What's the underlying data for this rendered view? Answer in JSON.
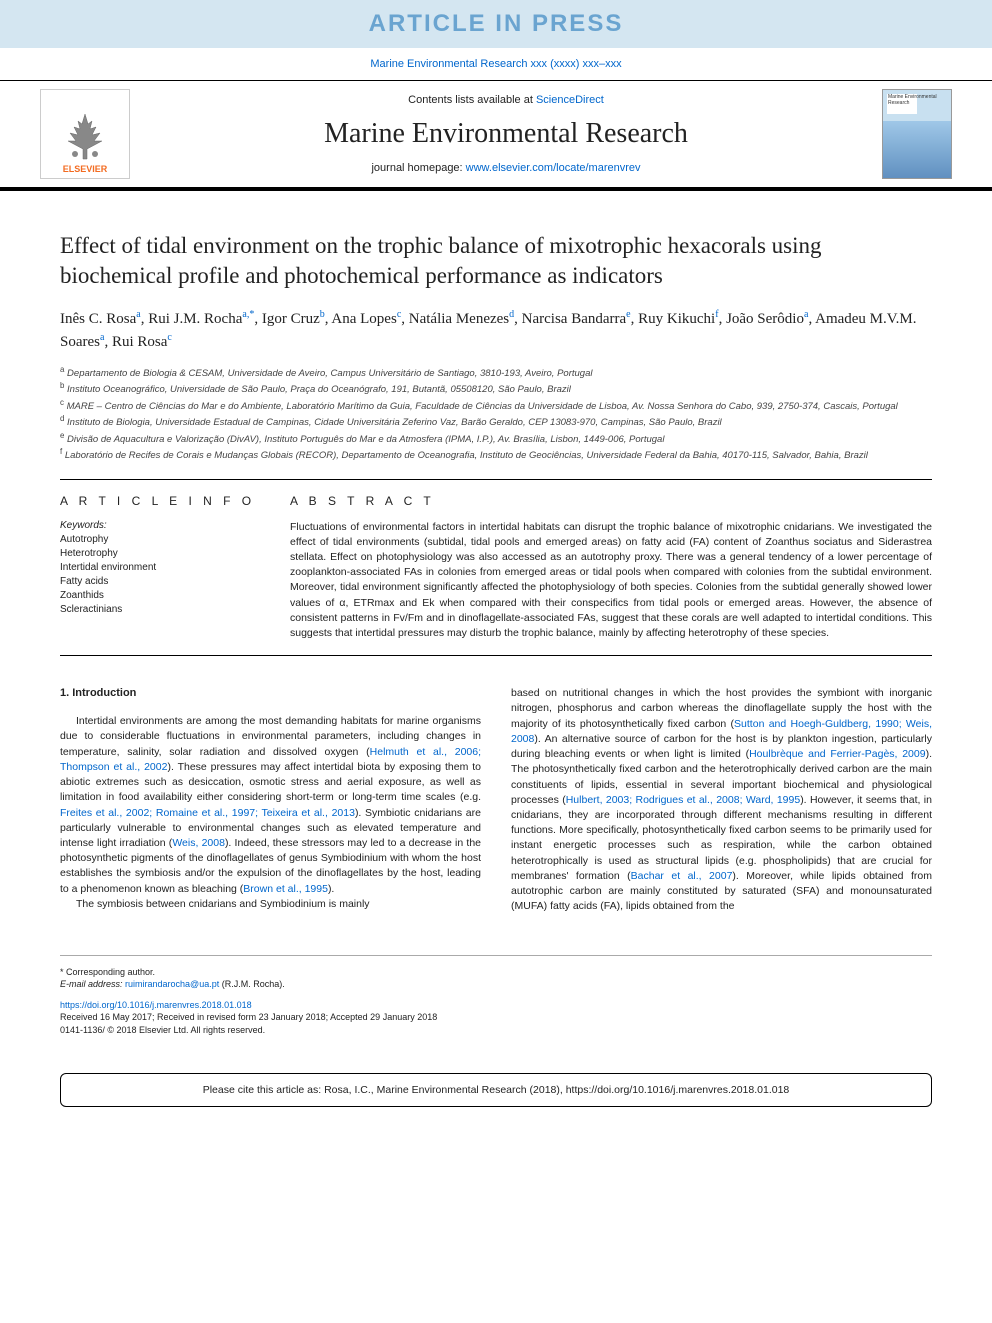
{
  "banner": "ARTICLE IN PRESS",
  "journal_ref_pre": "Marine Environmental Research xxx (xxxx) xxx–xxx",
  "header": {
    "contents_pre": "Contents lists available at ",
    "contents_link": "ScienceDirect",
    "journal_title": "Marine Environmental Research",
    "homepage_pre": "journal homepage: ",
    "homepage_link": "www.elsevier.com/locate/marenvrev",
    "elsevier_label": "ELSEVIER",
    "cover_label": "Marine\nEnvironmental\nResearch"
  },
  "article": {
    "title": "Effect of tidal environment on the trophic balance of mixotrophic hexacorals using biochemical profile and photochemical performance as indicators",
    "authors_html": "Inês C. Rosa<sup>a</sup>, Rui J.M. Rocha<sup>a,*</sup>, Igor Cruz<sup>b</sup>, Ana Lopes<sup>c</sup>, Natália Menezes<sup>d</sup>, Narcisa Bandarra<sup>e</sup>, Ruy Kikuchi<sup>f</sup>, João Serôdio<sup>a</sup>, Amadeu M.V.M. Soares<sup>a</sup>, Rui Rosa<sup>c</sup>",
    "affiliations": [
      "a Departamento de Biologia & CESAM, Universidade de Aveiro, Campus Universitário de Santiago, 3810-193, Aveiro, Portugal",
      "b Instituto Oceanográfico, Universidade de São Paulo, Praça do Oceanógrafo, 191, Butantã, 05508120, São Paulo, Brazil",
      "c MARE – Centro de Ciências do Mar e do Ambiente, Laboratório Marítimo da Guia, Faculdade de Ciências da Universidade de Lisboa, Av. Nossa Senhora do Cabo, 939, 2750-374, Cascais, Portugal",
      "d Instituto de Biologia, Universidade Estadual de Campinas, Cidade Universitária Zeferino Vaz, Barão Geraldo, CEP 13083-970, Campinas, São Paulo, Brazil",
      "e Divisão de Aquacultura e Valorização (DivAV), Instituto Português do Mar e da Atmosfera (IPMA, I.P.), Av. Brasília, Lisbon, 1449-006, Portugal",
      "f Laboratório de Recifes de Corais e Mudanças Globais (RECOR), Departamento de Oceanografia, Instituto de Geociências, Universidade Federal da Bahia, 40170-115, Salvador, Bahia, Brazil"
    ],
    "info_label": "A R T I C L E  I N F O",
    "keywords_label": "Keywords:",
    "keywords": [
      "Autotrophy",
      "Heterotrophy",
      "Intertidal environment",
      "Fatty acids",
      "Zoanthids",
      "Scleractinians"
    ],
    "abstract_label": "A B S T R A C T",
    "abstract": "Fluctuations of environmental factors in intertidal habitats can disrupt the trophic balance of mixotrophic cnidarians. We investigated the effect of tidal environments (subtidal, tidal pools and emerged areas) on fatty acid (FA) content of Zoanthus sociatus and Siderastrea stellata. Effect on photophysiology was also accessed as an autotrophy proxy. There was a general tendency of a lower percentage of zooplankton-associated FAs in colonies from emerged areas or tidal pools when compared with colonies from the subtidal environment. Moreover, tidal environment significantly affected the photophysiology of both species. Colonies from the subtidal generally showed lower values of α, ETRmax and Ek when compared with their conspecifics from tidal pools or emerged areas. However, the absence of consistent patterns in Fv/Fm and in dinoflagellate-associated FAs, suggest that these corals are well adapted to intertidal conditions. This suggests that intertidal pressures may disturb the trophic balance, mainly by affecting heterotrophy of these species."
  },
  "body": {
    "heading": "1. Introduction",
    "col1_p1": "Intertidal environments are among the most demanding habitats for marine organisms due to considerable fluctuations in environmental parameters, including changes in temperature, salinity, solar radiation and dissolved oxygen (",
    "col1_l1": "Helmuth et al., 2006; Thompson et al., 2002",
    "col1_p2": "). These pressures may affect intertidal biota by exposing them to abiotic extremes such as desiccation, osmotic stress and aerial exposure, as well as limitation in food availability either considering short-term or long-term time scales (e.g. ",
    "col1_l2": "Freites et al., 2002; Romaine et al., 1997; Teixeira et al., 2013",
    "col1_p3": "). Symbiotic cnidarians are particularly vulnerable to environmental changes such as elevated temperature and intense light irradiation (",
    "col1_l3": "Weis, 2008",
    "col1_p4": "). Indeed, these stressors may led to a decrease in the photosynthetic pigments of the dinoflagellates of genus Symbiodinium with whom the host establishes the symbiosis and/or the expulsion of the dinoflagellates by the host, leading to a phenomenon known as bleaching (",
    "col1_l4": "Brown et al., 1995",
    "col1_p5": ").",
    "col1_p6": "The symbiosis between cnidarians and Symbiodinium is mainly",
    "col2_p1": "based on nutritional changes in which the host provides the symbiont with inorganic nitrogen, phosphorus and carbon whereas the dinoflagellate supply the host with the majority of its photosynthetically fixed carbon (",
    "col2_l1": "Sutton and Hoegh-Guldberg, 1990; Weis, 2008",
    "col2_p2": "). An alternative source of carbon for the host is by plankton ingestion, particularly during bleaching events or when light is limited (",
    "col2_l2": "Houlbrèque and Ferrier-Pagès, 2009",
    "col2_p3": "). The photosynthetically fixed carbon and the heterotrophically derived carbon are the main constituents of lipids, essential in several important biochemical and physiological processes (",
    "col2_l3": "Hulbert, 2003; Rodrigues et al., 2008; Ward, 1995",
    "col2_p4": "). However, it seems that, in cnidarians, they are incorporated through different mechanisms resulting in different functions. More specifically, photosynthetically fixed carbon seems to be primarily used for instant energetic processes such as respiration, while the carbon obtained heterotrophically is used as structural lipids (e.g. phospholipids) that are crucial for membranes' formation (",
    "col2_l4": "Bachar et al., 2007",
    "col2_p5": "). Moreover, while lipids obtained from autotrophic carbon are mainly constituted by saturated (SFA) and monounsaturated (MUFA) fatty acids (FA), lipids obtained from the"
  },
  "footer": {
    "corresp": "* Corresponding author.",
    "email_label": "E-mail address: ",
    "email": "ruimirandarocha@ua.pt",
    "email_name": " (R.J.M. Rocha).",
    "doi": "https://doi.org/10.1016/j.marenvres.2018.01.018",
    "received": "Received 16 May 2017; Received in revised form 23 January 2018; Accepted 29 January 2018",
    "copyright": "0141-1136/ © 2018 Elsevier Ltd. All rights reserved."
  },
  "cite": "Please cite this article as: Rosa, I.C., Marine Environmental Research (2018), https://doi.org/10.1016/j.marenvres.2018.01.018",
  "colors": {
    "link": "#0066cc",
    "banner_bg": "#d4e6f1",
    "banner_fg": "#6aa4d0",
    "elsevier_orange": "#f36b21"
  }
}
